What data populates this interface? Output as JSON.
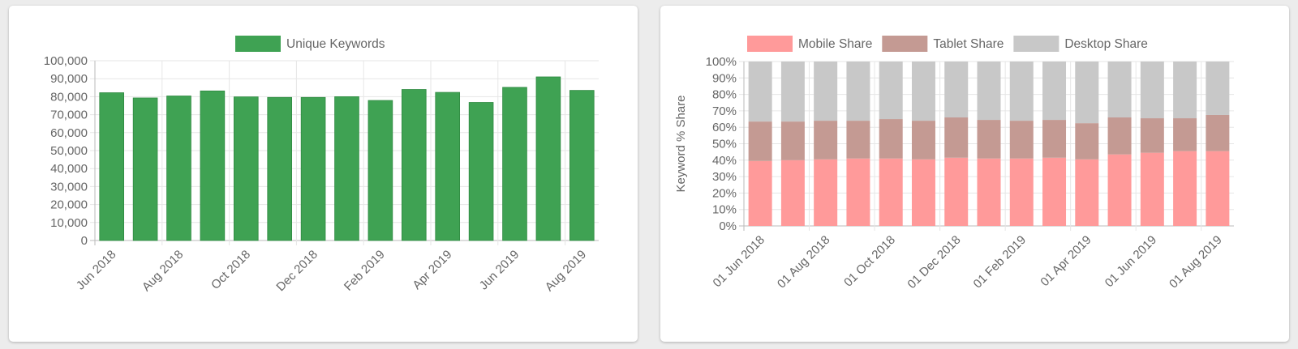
{
  "chart_data": [
    {
      "type": "bar",
      "legend_position": "top",
      "grid": true,
      "series": [
        {
          "name": "Unique Keywords",
          "color": "#3fa253",
          "values": [
            82200,
            79300,
            80400,
            83200,
            79900,
            79600,
            79600,
            80000,
            77900,
            84000,
            82400,
            76800,
            85200,
            91000,
            83500
          ]
        }
      ],
      "categories": [
        "Jun 2018",
        "Jul 2018",
        "Aug 2018",
        "Sep 2018",
        "Oct 2018",
        "Nov 2018",
        "Dec 2018",
        "Jan 2019",
        "Feb 2019",
        "Mar 2019",
        "Apr 2019",
        "May 2019",
        "Jun 2019",
        "Jul 2019",
        "Aug 2019"
      ],
      "shown_x_ticks": [
        "Jun 2018",
        "Aug 2018",
        "Oct 2018",
        "Dec 2018",
        "Feb 2019",
        "Apr 2019",
        "Jun 2019",
        "Aug 2019"
      ],
      "y_ticks": [
        "100,000",
        "90,000",
        "80,000",
        "70,000",
        "60,000",
        "50,000",
        "40,000",
        "30,000",
        "20,000",
        "10,000",
        "0"
      ],
      "ylim": [
        0,
        100000
      ]
    },
    {
      "type": "bar",
      "stacked": true,
      "legend_position": "top",
      "grid": true,
      "ylabel": "Keyword % Share",
      "series": [
        {
          "name": "Mobile Share",
          "color": "#ff9a9a",
          "values": [
            39.5,
            40,
            40.5,
            41,
            41,
            40.5,
            41.5,
            41,
            41,
            41.5,
            40.5,
            43.5,
            44.5,
            45.5,
            45.5
          ]
        },
        {
          "name": "Tablet Share",
          "color": "#c49a93",
          "values": [
            24,
            23.5,
            23.5,
            23,
            24,
            23.5,
            24.5,
            23.5,
            23,
            23,
            22,
            22.5,
            21,
            20,
            22
          ]
        },
        {
          "name": "Desktop Share",
          "color": "#c8c8c8",
          "values": [
            36.5,
            36.5,
            36,
            36,
            35,
            36,
            34,
            35.5,
            36,
            35.5,
            37.5,
            34,
            34.5,
            34.5,
            32.5
          ]
        }
      ],
      "categories": [
        "01 Jun 2018",
        "01 Jul 2018",
        "01 Aug 2018",
        "01 Sep 2018",
        "01 Oct 2018",
        "01 Nov 2018",
        "01 Dec 2018",
        "01 Jan 2019",
        "01 Feb 2019",
        "01 Mar 2019",
        "01 Apr 2019",
        "01 May 2019",
        "01 Jun 2019",
        "01 Jul 2019",
        "01 Aug 2019"
      ],
      "shown_x_ticks": [
        "01 Jun 2018",
        "01 Aug 2018",
        "01 Oct 2018",
        "01 Dec 2018",
        "01 Feb 2019",
        "01 Apr 2019",
        "01 Jun 2019",
        "01 Aug 2019"
      ],
      "y_ticks": [
        "100%",
        "90%",
        "80%",
        "70%",
        "60%",
        "50%",
        "40%",
        "30%",
        "20%",
        "10%",
        "0%"
      ],
      "ylim": [
        0,
        100
      ]
    }
  ]
}
